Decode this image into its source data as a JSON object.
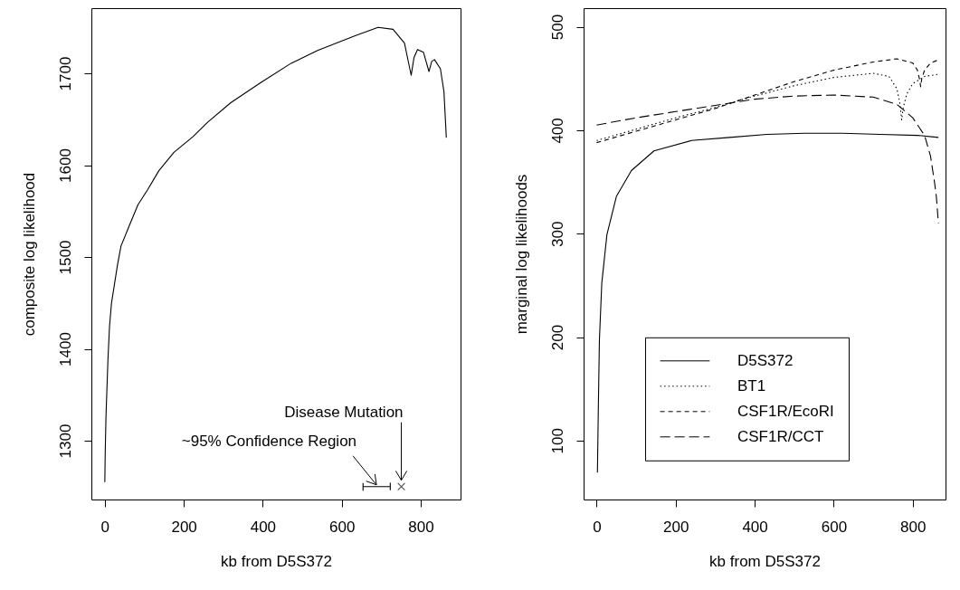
{
  "chart_data": [
    {
      "type": "line",
      "xlabel": "kb from D5S372",
      "ylabel": "composite log likelihood",
      "xlim": [
        -34,
        901
      ],
      "ylim": [
        1236,
        1771
      ],
      "xticks": [
        0,
        200,
        400,
        600,
        800
      ],
      "yticks": [
        1300,
        1400,
        1500,
        1600,
        1700
      ],
      "series": [
        {
          "type": "line",
          "color": "#000000",
          "line_style": "solid",
          "x": [
            0,
            1,
            3,
            8,
            12,
            17,
            32,
            41,
            60,
            84,
            108,
            137,
            175,
            223,
            261,
            319,
            395,
            472,
            539,
            634,
            692,
            730,
            759,
            773,
            776,
            783,
            792,
            807,
            821,
            828,
            835,
            850,
            859,
            865
          ],
          "values": [
            1255,
            1286,
            1327,
            1389,
            1425,
            1450,
            1491,
            1512,
            1532,
            1557,
            1573,
            1594,
            1614,
            1631,
            1647,
            1668,
            1690,
            1711,
            1725,
            1741,
            1750,
            1748,
            1733,
            1704,
            1698,
            1717,
            1726,
            1723,
            1702,
            1713,
            1715,
            1705,
            1680,
            1630
          ]
        },
        {
          "type": "line",
          "color": "#000000",
          "line_style": "solid",
          "x": [
            654,
            654,
            654,
            723,
            723,
            723
          ],
          "values": [
            1254,
            1246,
            1250,
            1250,
            1254,
            1246
          ]
        },
        {
          "type": "scatter",
          "color": "#000000",
          "marker": "cross",
          "x": [
            751
          ],
          "values": [
            1250
          ]
        }
      ],
      "annotations": [
        {
          "text": "~95% Confidence Region",
          "x": 688,
          "y": 1250
        },
        {
          "text": "Disease Mutation",
          "x": 751,
          "y": 1257
        }
      ]
    },
    {
      "type": "line",
      "xlabel": "kb from D5S372",
      "ylabel": "marginal log likelihoods",
      "xlim": [
        -33,
        883
      ],
      "ylim": [
        43,
        518
      ],
      "xticks": [
        0,
        200,
        400,
        600,
        800
      ],
      "yticks": [
        100,
        200,
        300,
        400,
        500
      ],
      "legend": "bottom",
      "series": [
        {
          "name": "D5S372",
          "color": "#000000",
          "line_style": "solid",
          "x": [
            2,
            4,
            7,
            13,
            26,
            50,
            88,
            145,
            240,
            336,
            431,
            526,
            622,
            717,
            812,
            865
          ],
          "values": [
            69,
            124,
            197,
            252,
            299,
            336,
            361,
            380,
            390,
            393,
            396,
            397,
            397,
            396,
            395,
            393
          ]
        },
        {
          "name": "BT1",
          "color": "#000000",
          "line_style": "dotted",
          "x": [
            0,
            100,
            200,
            300,
            400,
            500,
            600,
            700,
            740,
            760,
            768,
            772,
            776,
            785,
            800,
            830,
            865
          ],
          "values": [
            390,
            401,
            412,
            422,
            433,
            443,
            451,
            455,
            452,
            440,
            425,
            410,
            422,
            435,
            445,
            452,
            454
          ]
        },
        {
          "name": "CSF1R/EcoRI",
          "color": "#000000",
          "line_style": "dashed",
          "x": [
            0,
            100,
            200,
            300,
            400,
            500,
            600,
            700,
            760,
            800,
            812,
            818,
            820,
            823,
            830,
            845,
            865
          ],
          "values": [
            388,
            399,
            410,
            421,
            434,
            447,
            458,
            466,
            469,
            465,
            458,
            448,
            442,
            450,
            458,
            465,
            468
          ]
        },
        {
          "name": "CSF1R/CCT",
          "color": "#000000",
          "line_style": "longdash",
          "x": [
            0,
            100,
            200,
            300,
            400,
            500,
            600,
            700,
            760,
            800,
            830,
            845,
            855,
            860,
            865
          ],
          "values": [
            405,
            412,
            418,
            424,
            430,
            433,
            434,
            432,
            425,
            412,
            395,
            375,
            350,
            335,
            310
          ]
        }
      ]
    }
  ]
}
